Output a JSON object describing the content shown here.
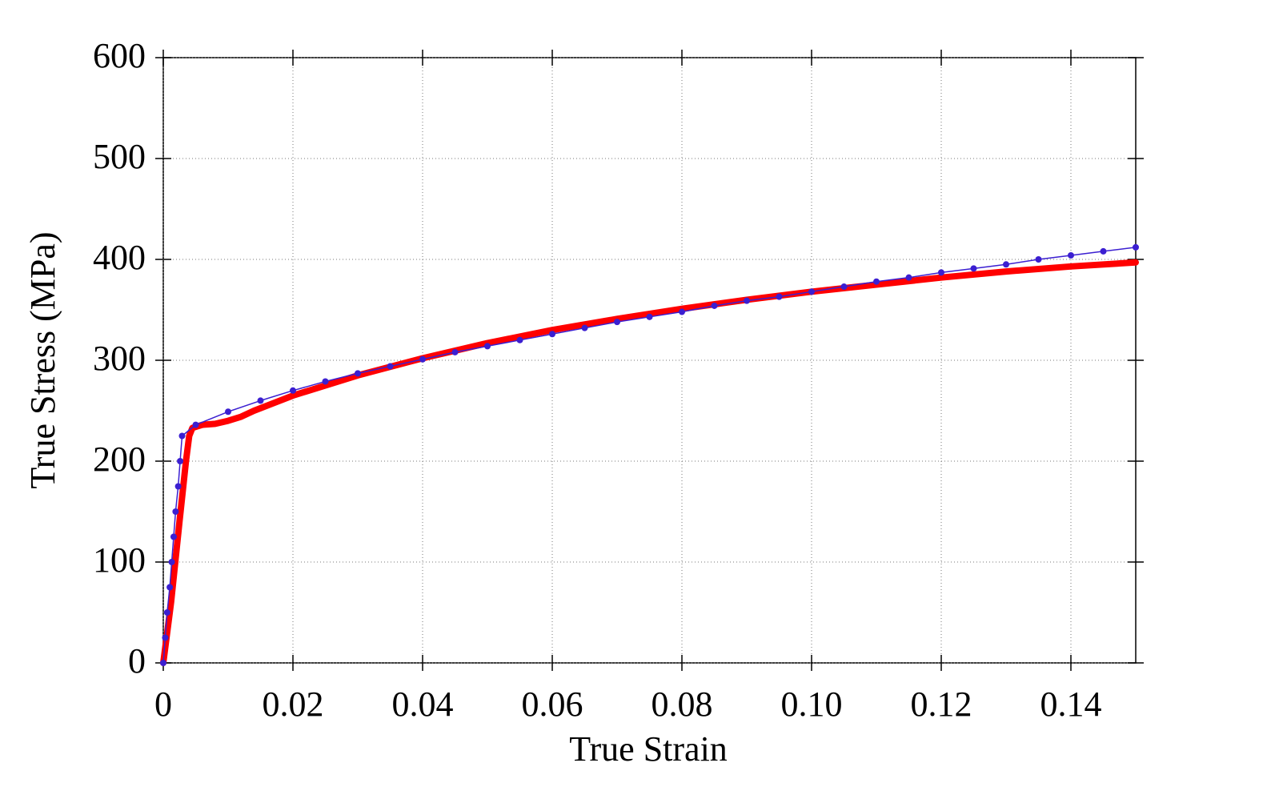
{
  "chart_data": {
    "type": "line",
    "x_label": "True Strain",
    "y_label": "True Stress (MPa)",
    "xlim": [
      0,
      0.15
    ],
    "ylim": [
      0,
      600
    ],
    "xticks": [
      0,
      0.02,
      0.04,
      0.06,
      0.08,
      {
        "value": 0.1,
        "label": "0.10"
      },
      0.12,
      0.14
    ],
    "yticks": [
      0,
      100,
      200,
      300,
      400,
      500,
      600
    ],
    "grid": true,
    "series": [
      {
        "color": "#ff0000",
        "markers": false,
        "x": [
          0,
          0.0012,
          0.0025,
          0.0035,
          0.004,
          0.0045,
          0.006,
          0.008,
          0.01,
          0.012,
          0.014,
          0.02,
          0.03,
          0.04,
          0.05,
          0.06,
          0.07,
          0.08,
          0.09,
          0.1,
          0.11,
          0.12,
          0.13,
          0.14,
          0.15
        ],
        "values": [
          0,
          60,
          140,
          200,
          225,
          233,
          236,
          237,
          240,
          244,
          250,
          265,
          285,
          302,
          317,
          330,
          341,
          351,
          360,
          368,
          375,
          382,
          388,
          393,
          397
        ]
      },
      {
        "color": "#3b1fd1",
        "markers": true,
        "x": [
          0,
          0.0003,
          0.0006,
          0.001,
          0.0013,
          0.0016,
          0.0019,
          0.0023,
          0.0026,
          0.0029,
          0.005,
          0.01,
          0.015,
          0.02,
          0.025,
          0.03,
          0.035,
          0.04,
          0.045,
          0.05,
          0.055,
          0.06,
          0.065,
          0.07,
          0.075,
          0.08,
          0.085,
          0.09,
          0.095,
          0.1,
          0.105,
          0.11,
          0.115,
          0.12,
          0.125,
          0.13,
          0.135,
          0.14,
          0.145,
          0.15
        ],
        "values": [
          0,
          25,
          50,
          75,
          100,
          125,
          150,
          175,
          200,
          225,
          236,
          249,
          260,
          270,
          279,
          287,
          294,
          301,
          308,
          314,
          320,
          326,
          332,
          338,
          343,
          348,
          354,
          359,
          363,
          368,
          373,
          378,
          382,
          387,
          391,
          395,
          400,
          404,
          408,
          412
        ]
      }
    ]
  }
}
